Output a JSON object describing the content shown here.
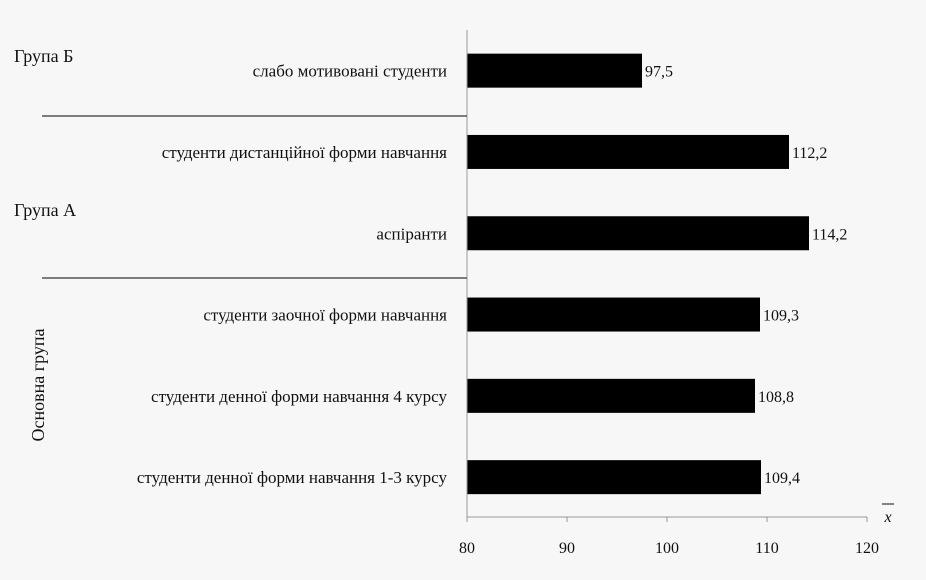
{
  "chart_data": {
    "type": "bar",
    "orientation": "horizontal",
    "categories": [
      "слабо мотивовані студенти",
      "студенти дистанційної форми навчання",
      "аспіранти",
      "студенти заочної форми навчання",
      "студенти денної форми навчання 4 курсу",
      "студенти денної форми навчання 1-3 курсу"
    ],
    "values": [
      97.5,
      112.2,
      114.2,
      109.3,
      108.8,
      109.4
    ],
    "value_labels": [
      "97,5",
      "112,2",
      "114,2",
      "109,3",
      "108,8",
      "109,4"
    ],
    "bar_color": "#000000",
    "xlim": [
      80,
      120
    ],
    "xticks": [
      "80",
      "90",
      "100",
      "110",
      "120"
    ],
    "xlabel": "x",
    "ylabel": "",
    "title": "",
    "grid": false,
    "groups": [
      {
        "label": "Група Б",
        "rotated": false
      },
      {
        "label": "Група А",
        "rotated": false
      },
      {
        "label": "Основна група",
        "rotated": true
      }
    ]
  }
}
